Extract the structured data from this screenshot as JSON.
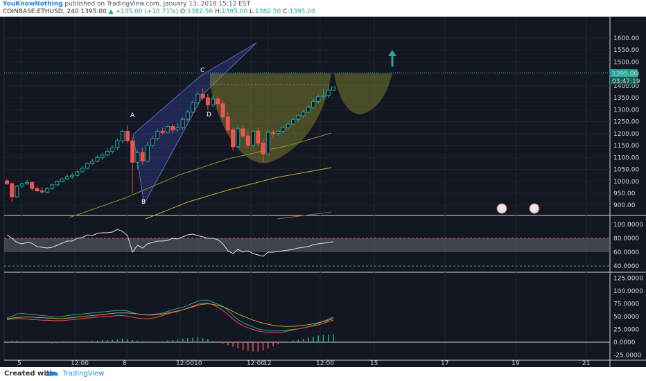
{
  "header": {
    "author": "YouKnowNothing",
    "published_text": "published on TradingView.com, January 13, 2018 15:12 EST",
    "symbol": "COINBASE:ETHUSD, 240",
    "last": "1395.00",
    "change": "+135.00 (+10.71%)",
    "o_label": "O:",
    "o_value": "1382.56",
    "h_label": "H:",
    "h_value": "1395.00",
    "l_label": "L:",
    "l_value": "1382.50",
    "c_label": "C:",
    "c_value": "1395.00"
  },
  "footer": {
    "created_label": "Created with",
    "brand": "TradingView"
  },
  "price_badge": "1395.00",
  "countdown_badge": "03:47:19",
  "colors": {
    "up": "#26a69a",
    "down": "#ef5350",
    "background": "#131722",
    "pattern_blue": "#5c6bc0",
    "pattern_olive": "#8d8d2e"
  },
  "chart_data": [
    {
      "type": "candlestick",
      "title": "COINBASE:ETHUSD, 240",
      "ylim": [
        860,
        1690
      ],
      "y_ticks": [
        "900.00",
        "950.00",
        "1000.00",
        "1050.00",
        "1100.00",
        "1150.00",
        "1200.00",
        "1250.00",
        "1300.00",
        "1350.00",
        "1400.00",
        "1450.00",
        "1500.00",
        "1550.00",
        "1600.00"
      ],
      "x_ticks": [
        "5",
        "12:00",
        "8",
        "12:00",
        "10",
        "12:00",
        "12",
        "12:00",
        "15",
        "17",
        "19",
        "21"
      ],
      "candles": [
        [
          1002,
          1010,
          985,
          990
        ],
        [
          990,
          995,
          915,
          935
        ],
        [
          935,
          985,
          930,
          980
        ],
        [
          980,
          995,
          970,
          990
        ],
        [
          990,
          1005,
          985,
          995
        ],
        [
          995,
          1000,
          960,
          970
        ],
        [
          970,
          980,
          955,
          960
        ],
        [
          960,
          975,
          950,
          955
        ],
        [
          955,
          975,
          950,
          970
        ],
        [
          970,
          990,
          965,
          985
        ],
        [
          985,
          1005,
          980,
          1000
        ],
        [
          1000,
          1015,
          995,
          1010
        ],
        [
          1010,
          1030,
          1005,
          1020
        ],
        [
          1020,
          1035,
          1010,
          1025
        ],
        [
          1025,
          1045,
          1020,
          1040
        ],
        [
          1040,
          1065,
          1035,
          1055
        ],
        [
          1055,
          1080,
          1050,
          1075
        ],
        [
          1075,
          1095,
          1070,
          1085
        ],
        [
          1085,
          1110,
          1080,
          1100
        ],
        [
          1100,
          1120,
          1090,
          1110
        ],
        [
          1110,
          1140,
          1105,
          1125
        ],
        [
          1125,
          1150,
          1115,
          1140
        ],
        [
          1140,
          1180,
          1130,
          1170
        ],
        [
          1170,
          1215,
          1160,
          1210
        ],
        [
          1210,
          1235,
          1160,
          1170
        ],
        [
          1170,
          1185,
          950,
          1080
        ],
        [
          1080,
          1130,
          1050,
          1120
        ],
        [
          1120,
          1140,
          1070,
          1085
        ],
        [
          1085,
          1165,
          1080,
          1150
        ],
        [
          1150,
          1190,
          1140,
          1180
        ],
        [
          1180,
          1220,
          1170,
          1210
        ],
        [
          1210,
          1225,
          1195,
          1205
        ],
        [
          1205,
          1235,
          1200,
          1230
        ],
        [
          1230,
          1240,
          1200,
          1215
        ],
        [
          1215,
          1245,
          1205,
          1225
        ],
        [
          1225,
          1270,
          1215,
          1260
        ],
        [
          1260,
          1300,
          1250,
          1290
        ],
        [
          1290,
          1340,
          1280,
          1330
        ],
        [
          1330,
          1375,
          1320,
          1365
        ],
        [
          1365,
          1390,
          1340,
          1350
        ],
        [
          1350,
          1365,
          1300,
          1320
        ],
        [
          1320,
          1360,
          1310,
          1345
        ],
        [
          1345,
          1355,
          1300,
          1325
        ],
        [
          1325,
          1340,
          1260,
          1270
        ],
        [
          1270,
          1290,
          1200,
          1215
        ],
        [
          1215,
          1225,
          1130,
          1145
        ],
        [
          1145,
          1230,
          1140,
          1220
        ],
        [
          1220,
          1235,
          1180,
          1190
        ],
        [
          1190,
          1215,
          1140,
          1150
        ],
        [
          1150,
          1215,
          1140,
          1210
        ],
        [
          1210,
          1225,
          1150,
          1160
        ],
        [
          1160,
          1175,
          1080,
          1115
        ],
        [
          1115,
          1215,
          1110,
          1205
        ],
        [
          1205,
          1220,
          1180,
          1200
        ],
        [
          1200,
          1215,
          1190,
          1210
        ],
        [
          1210,
          1230,
          1200,
          1225
        ],
        [
          1225,
          1245,
          1215,
          1240
        ],
        [
          1240,
          1265,
          1235,
          1260
        ],
        [
          1260,
          1280,
          1250,
          1275
        ],
        [
          1275,
          1300,
          1265,
          1290
        ],
        [
          1290,
          1320,
          1285,
          1310
        ],
        [
          1310,
          1345,
          1305,
          1335
        ],
        [
          1335,
          1365,
          1325,
          1355
        ],
        [
          1355,
          1385,
          1345,
          1360
        ],
        [
          1360,
          1400,
          1350,
          1382
        ],
        [
          1382,
          1395,
          1382,
          1395
        ]
      ],
      "x_labels_points": [
        "A",
        "B",
        "C",
        "D"
      ]
    },
    {
      "type": "line",
      "title": "",
      "ylim": [
        32,
        112
      ],
      "y_ticks": [
        "40.0000",
        "60.0000",
        "80.0000",
        "100.0000"
      ],
      "values": [
        85,
        80,
        74,
        72,
        74,
        73,
        68,
        67,
        66,
        67,
        70,
        73,
        76,
        76,
        80,
        81,
        85,
        84,
        87,
        88,
        88,
        89,
        93,
        90,
        84,
        60,
        70,
        66,
        72,
        74,
        76,
        76,
        77,
        80,
        79,
        82,
        85,
        86,
        84,
        82,
        80,
        80,
        78,
        72,
        62,
        58,
        64,
        60,
        62,
        58,
        56,
        54,
        60,
        60,
        61,
        62,
        63,
        64,
        66,
        67,
        68,
        71,
        72,
        73,
        74,
        75
      ],
      "band": [
        60,
        80
      ]
    },
    {
      "type": "line",
      "title": "",
      "ylim": [
        -35,
        135
      ],
      "y_ticks": [
        "-25.0000",
        "0.0000",
        "25.0000",
        "50.0000",
        "75.0000",
        "100.0000",
        "125.0000"
      ],
      "series": [
        {
          "color": "#26a69a",
          "values": [
            48,
            50,
            55,
            56,
            55,
            54,
            53,
            52,
            51,
            50,
            49,
            50,
            52,
            53,
            54,
            55,
            56,
            57,
            58,
            59,
            60,
            61,
            62,
            62,
            61,
            58,
            55,
            54,
            53,
            54,
            55,
            57,
            60,
            63,
            66,
            68,
            72,
            76,
            80,
            82,
            82,
            78,
            74,
            70,
            62,
            52,
            44,
            38,
            34,
            30,
            26,
            24,
            22,
            22,
            22,
            23,
            24,
            25,
            26,
            28,
            30,
            33,
            37,
            41,
            45,
            49
          ]
        },
        {
          "color": "#c9a92a",
          "values": [
            46,
            47,
            48,
            49,
            49,
            49,
            48,
            48,
            47,
            47,
            46,
            46,
            47,
            48,
            49,
            50,
            51,
            52,
            53,
            54,
            55,
            56,
            57,
            57,
            57,
            56,
            55,
            54,
            53,
            53,
            54,
            55,
            57,
            59,
            61,
            63,
            66,
            69,
            72,
            74,
            75,
            74,
            72,
            69,
            65,
            60,
            55,
            51,
            47,
            43,
            40,
            37,
            35,
            33,
            32,
            31,
            31,
            31,
            32,
            33,
            34,
            36,
            38,
            40,
            43,
            46
          ]
        },
        {
          "color": "#ef5350",
          "values": [
            44,
            45,
            46,
            46,
            45,
            44,
            44,
            43,
            43,
            42,
            42,
            42,
            43,
            44,
            45,
            46,
            47,
            48,
            49,
            50,
            50,
            51,
            52,
            52,
            51,
            49,
            47,
            46,
            46,
            47,
            49,
            52,
            55,
            58,
            60,
            63,
            67,
            70,
            74,
            76,
            76,
            73,
            68,
            62,
            54,
            45,
            38,
            32,
            28,
            25,
            22,
            20,
            19,
            19,
            19,
            20,
            22,
            24,
            26,
            28,
            30,
            32,
            34,
            37,
            40,
            43
          ]
        }
      ],
      "histogram": [
        2,
        3,
        3,
        2,
        1,
        1,
        0,
        -1,
        -1,
        -2,
        -2,
        -1,
        0,
        1,
        1,
        2,
        2,
        3,
        3,
        4,
        4,
        5,
        6,
        7,
        6,
        4,
        3,
        2,
        1,
        1,
        1,
        2,
        3,
        4,
        5,
        7,
        8,
        9,
        10,
        8,
        6,
        3,
        0,
        -3,
        -6,
        -9,
        -12,
        -15,
        -17,
        -18,
        -18,
        -16,
        -12,
        -8,
        -4,
        -1,
        1,
        3,
        5,
        7,
        9,
        11,
        13,
        14,
        15,
        16
      ]
    }
  ],
  "events": [
    "2",
    "3"
  ]
}
